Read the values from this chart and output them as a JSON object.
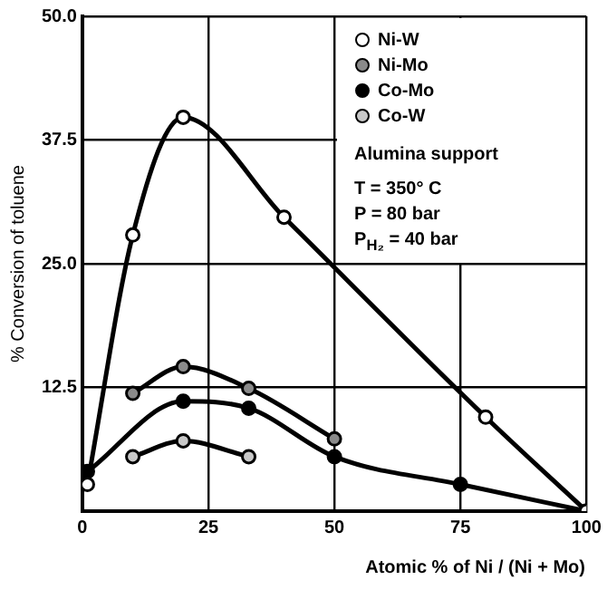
{
  "chart_data": {
    "type": "line",
    "xlabel": "Atomic % of Ni / (Ni + Mo)",
    "ylabel": "% Conversion of toluene",
    "xlim": [
      0,
      100
    ],
    "xticks": [
      0,
      25,
      50,
      75,
      100
    ],
    "ylim": [
      0,
      50
    ],
    "yticks": [
      {
        "value": 0,
        "label": null
      },
      12.5,
      {
        "value": 25,
        "label": "25.0"
      },
      37.5,
      {
        "value": 50,
        "label": "50.0"
      }
    ],
    "grid": true,
    "legend": "top right",
    "marker": "circle",
    "annotations": [
      "Alumina support",
      "T = 350° C",
      "P = 80 bar",
      "P$_{H₂}$ = 40 bar"
    ],
    "series": [
      {
        "name": "Ni-W",
        "color": "#000000",
        "x": [
          1,
          10,
          20,
          40,
          80,
          100
        ],
        "values": [
          2.7,
          27.9,
          39.8,
          29.7,
          9.5,
          0
        ]
      },
      {
        "name": "Ni-Mo",
        "color": "#000000",
        "x": [
          10,
          20,
          33,
          50
        ],
        "values": [
          11.9,
          14.6,
          12.4,
          7.3
        ]
      },
      {
        "name": "Co-Mo",
        "color": "#000000",
        "x": [
          1,
          20,
          33,
          50,
          75,
          100
        ],
        "values": [
          4,
          11.1,
          10.4,
          5.5,
          2.7,
          0
        ]
      },
      {
        "name": "Co-W",
        "color": "#000000",
        "x": [
          10,
          20,
          33
        ],
        "values": [
          5.5,
          7.1,
          5.5
        ]
      }
    ]
  }
}
